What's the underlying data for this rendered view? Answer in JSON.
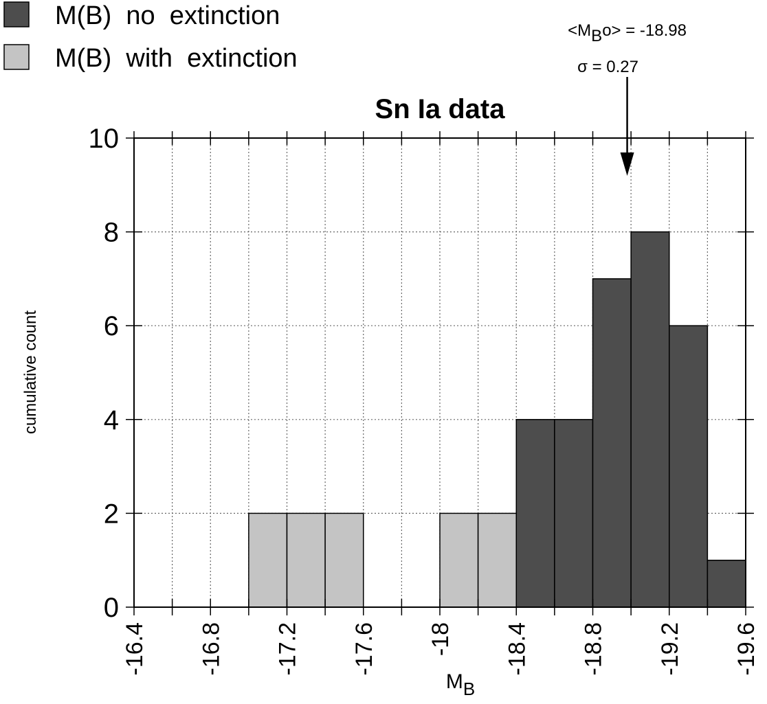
{
  "chart_data": {
    "type": "histogram",
    "title": "Sn Ia data",
    "xlabel": {
      "main": "M",
      "sub": "B"
    },
    "ylabel": "cumulative count",
    "bins": [
      -16.4,
      -16.6,
      -16.8,
      -17.0,
      -17.2,
      -17.4,
      -17.6,
      -17.8,
      -18.0,
      -18.2,
      -18.4,
      -18.6,
      -18.8,
      -19.0,
      -19.2,
      -19.4,
      -19.6
    ],
    "series": [
      {
        "name": "M(B)  no  extinction",
        "color": "#4d4d4d",
        "values": [
          0,
          0,
          0,
          0,
          0,
          0,
          0,
          0,
          0,
          0,
          4,
          4,
          7,
          8,
          6,
          1
        ]
      },
      {
        "name": "M(B)  with  extinction",
        "color": "#c4c4c4",
        "values": [
          0,
          0,
          0,
          2,
          2,
          2,
          0,
          0,
          2,
          2,
          0,
          0,
          0,
          0,
          0,
          0
        ]
      }
    ],
    "xlim": [
      -16.4,
      -19.6
    ],
    "xticks": [
      -16.4,
      -16.8,
      -17.2,
      -17.6,
      -18,
      -18.4,
      -18.8,
      -19.2,
      -19.6
    ],
    "ylim": [
      0,
      10
    ],
    "yticks": [
      0,
      2,
      4,
      6,
      8,
      10
    ],
    "grid": true,
    "annotation": {
      "prefix": "<M",
      "sub": "B",
      "suffix": "o>  =  -18.98",
      "x": -18.98,
      "line2": "σ = 0.27"
    }
  }
}
